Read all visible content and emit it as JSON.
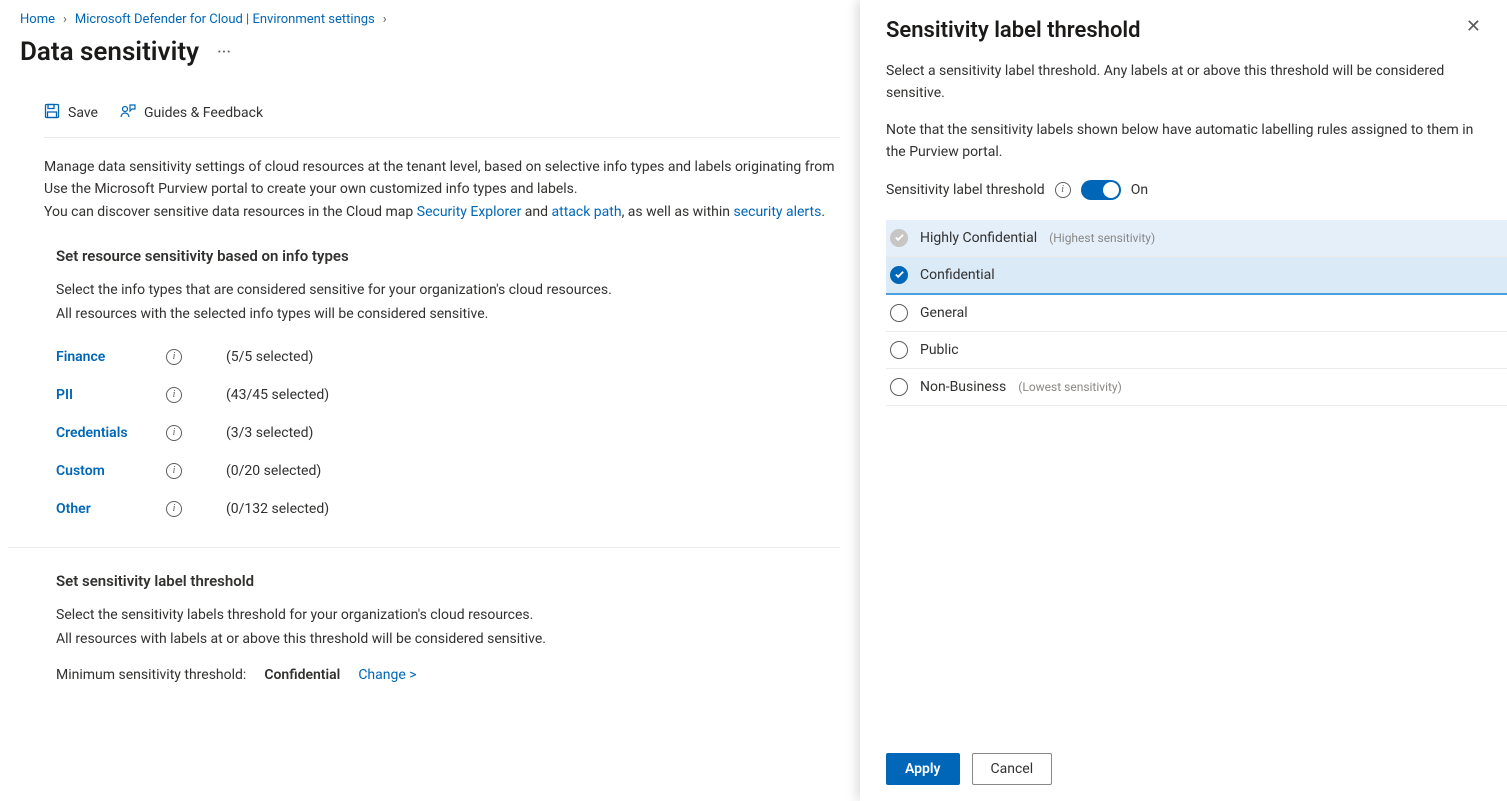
{
  "breadcrumb": {
    "home": "Home",
    "defender": "Microsoft Defender for Cloud | Environment settings"
  },
  "page": {
    "title": "Data sensitivity"
  },
  "toolbar": {
    "save": "Save",
    "guides": "Guides & Feedback"
  },
  "intro": {
    "line1a": "Manage data sensitivity settings of cloud resources at the tenant level, based on selective info types and labels originating from",
    "line1b": "Use the Microsoft Purview portal to create your own customized info types and labels.",
    "line2a": "You can discover sensitive data resources in the Cloud map ",
    "link_security_explorer": "Security Explorer",
    "line2b": " and ",
    "link_attack_path": "attack path",
    "line2c": ", as well as within ",
    "link_security_alerts": "security alerts",
    "line2d": "."
  },
  "section_infotypes": {
    "title": "Set resource sensitivity based on info types",
    "sub1": "Select the info types that are considered sensitive for your organization's cloud resources.",
    "sub2": "All resources with the selected info types will be considered sensitive.",
    "rows": [
      {
        "name": "Finance",
        "count": "(5/5 selected)"
      },
      {
        "name": "PII",
        "count": "(43/45 selected)"
      },
      {
        "name": "Credentials",
        "count": "(3/3 selected)"
      },
      {
        "name": "Custom",
        "count": "(0/20 selected)"
      },
      {
        "name": "Other",
        "count": "(0/132 selected)"
      }
    ]
  },
  "section_threshold": {
    "title": "Set sensitivity label threshold",
    "sub1": "Select the sensitivity labels threshold for your organization's cloud resources.",
    "sub2": "All resources with labels at or above this threshold will be considered sensitive.",
    "min_label": "Minimum sensitivity threshold:",
    "current": "Confidential",
    "change": "Change  >"
  },
  "panel": {
    "title": "Sensitivity label threshold",
    "desc1": "Select a sensitivity label threshold. Any labels at or above this threshold will be considered sensitive.",
    "desc2": "Note that the sensitivity labels shown below have automatic labelling rules assigned to them in the Purview portal.",
    "toggle_label": "Sensitivity label threshold",
    "toggle_state": "On",
    "labels": [
      {
        "name": "Highly Confidential",
        "hint": "(Highest sensitivity)",
        "state": "disabled"
      },
      {
        "name": "Confidential",
        "hint": "",
        "state": "selected"
      },
      {
        "name": "General",
        "hint": "",
        "state": ""
      },
      {
        "name": "Public",
        "hint": "",
        "state": ""
      },
      {
        "name": "Non-Business",
        "hint": "(Lowest sensitivity)",
        "state": ""
      }
    ],
    "apply": "Apply",
    "cancel": "Cancel"
  }
}
